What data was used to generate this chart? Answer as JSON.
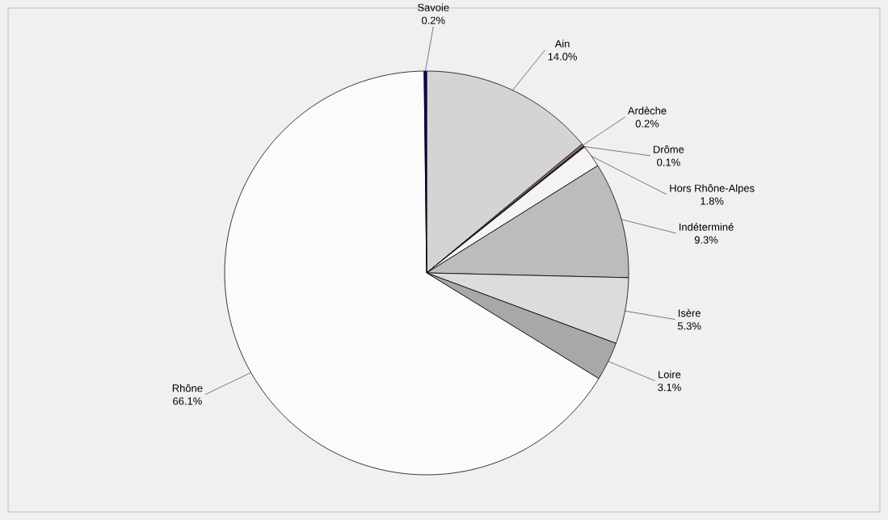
{
  "chart_data": {
    "type": "pie",
    "categories": [
      "Ain",
      "Ardèche",
      "Drôme",
      "Hors Rhône-Alpes",
      "Indéterminé",
      "Isère",
      "Loire",
      "Rhône",
      "Savoie"
    ],
    "values": [
      14.0,
      0.2,
      0.1,
      1.8,
      9.3,
      5.3,
      3.1,
      66.1,
      0.2
    ],
    "value_labels": [
      "14.0%",
      "0.2%",
      "0.1%",
      "1.8%",
      "9.3%",
      "5.3%",
      "3.1%",
      "66.1%",
      "0.2%"
    ],
    "colors": [
      "#d4d4d4",
      "#808080",
      "#800000",
      "#f4f4f4",
      "#bcbcbc",
      "#dcdcdc",
      "#a8a8a8",
      "#fbfbfb",
      "#000080"
    ]
  }
}
